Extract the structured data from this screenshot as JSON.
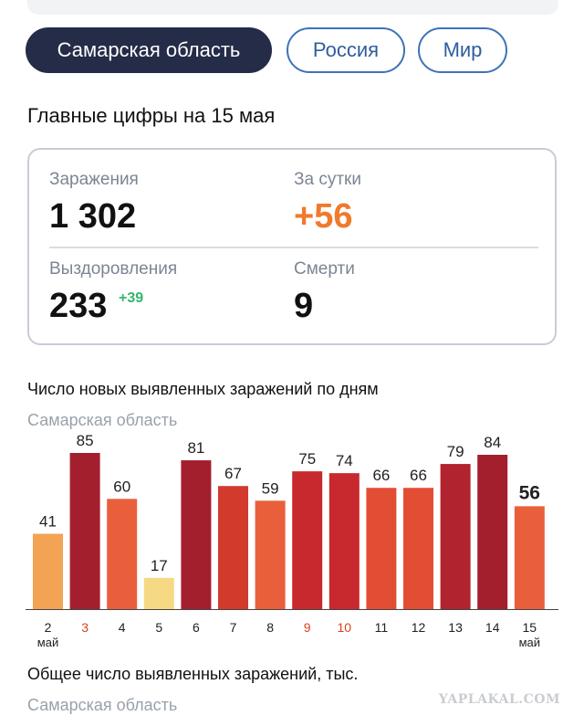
{
  "tabs": [
    {
      "label": "Самарская область",
      "active": true
    },
    {
      "label": "Россия",
      "active": false
    },
    {
      "label": "Мир",
      "active": false
    }
  ],
  "headline": "Главные цифры на 15 мая",
  "stats": {
    "infections": {
      "label": "Заражения",
      "value": "1 302"
    },
    "daily": {
      "label": "За сутки",
      "value": "+56"
    },
    "recoveries": {
      "label": "Выздоровления",
      "value": "233",
      "delta": "+39"
    },
    "deaths": {
      "label": "Смерти",
      "value": "9"
    }
  },
  "colors": {
    "active_tab_bg": "#252c48",
    "tab_outline": "#3d73b7",
    "daily_orange": "#f07a2c",
    "recovery_green": "#35b56c"
  },
  "chart": {
    "title": "Число новых выявленных заражений по дням",
    "region": "Самарская область"
  },
  "chart_data": {
    "type": "bar",
    "categories": [
      "2",
      "3",
      "4",
      "5",
      "6",
      "7",
      "8",
      "9",
      "10",
      "11",
      "12",
      "13",
      "14",
      "15"
    ],
    "values": [
      41,
      85,
      60,
      17,
      81,
      67,
      59,
      75,
      74,
      66,
      66,
      79,
      84,
      56
    ],
    "month_label": "май",
    "weekend_categories": [
      "3",
      "9",
      "10"
    ],
    "colors": [
      "#f3a354",
      "#a31f2e",
      "#ea5f3b",
      "#f6d983",
      "#a31f2e",
      "#d23a2c",
      "#ea5f3b",
      "#c8292e",
      "#c8292e",
      "#e24e34",
      "#e24e34",
      "#b1232e",
      "#a31f2e",
      "#ea5f3b"
    ],
    "ylim": [
      0,
      85
    ]
  },
  "chart2": {
    "title": "Общее число выявленных заражений, тыс.",
    "region": "Самарская область"
  },
  "watermark": "YAPLAKAL.COM"
}
